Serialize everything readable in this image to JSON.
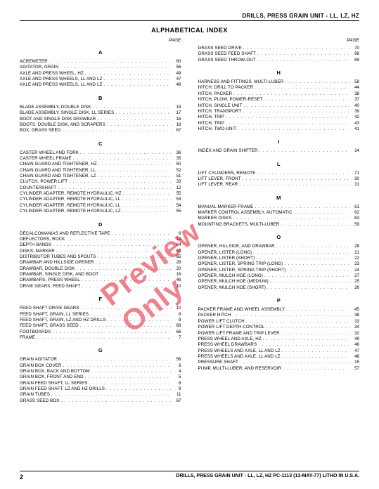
{
  "header": "DRILLS, PRESS GRAIN UNIT - LL, LZ, HZ",
  "indexTitle": "ALPHABETICAL INDEX",
  "pageLabel": "PAGE",
  "watermark": "Preview Only",
  "footer": {
    "pageNum": "2",
    "text": "DRILLS, PRESS GRAIN UNIT - LL, LZ, HZ   PC-1113 (13-MAY-77)   LITHO IN U.S.A."
  },
  "left": [
    {
      "letter": "A"
    },
    {
      "label": "ACREMETER",
      "page": "60"
    },
    {
      "label": "AGITATOR, GRAIN",
      "page": "56"
    },
    {
      "label": "AXLE AND PRESS WHEEL, HZ",
      "page": "49"
    },
    {
      "label": "AXLE AND PRESS WHEELS, LL AND LZ",
      "page": "47"
    },
    {
      "label": "AXLE AND PRESS WHEELS, LL AND LZ",
      "page": "48"
    },
    {
      "letter": "B"
    },
    {
      "label": "BLADE ASSEMBLY, DOUBLE DISK",
      "page": "19"
    },
    {
      "label": "BLADE ASSEMBLY, SINGLE DISK, LL SERIES",
      "page": "17"
    },
    {
      "label": "BOOT AND SINGLE DISK DRAWBAR",
      "page": "16"
    },
    {
      "label": "BOOTS, DOUBLE DISK, AND SCRAPERS",
      "page": "18"
    },
    {
      "label": "BOX, GRASS SEED",
      "page": "67"
    },
    {
      "letter": "C"
    },
    {
      "label": "CASTER WHEEL AND FORK",
      "page": "36"
    },
    {
      "label": "CASTER WHEEL FRAME",
      "page": "35"
    },
    {
      "label": "CHAIN GUARD AND TIGHTENER, HZ",
      "page": "50"
    },
    {
      "label": "CHAIN GUARD AND TIGHTENER, LL",
      "page": "52"
    },
    {
      "label": "CHAIN GUARD AND TIGHTENER, LZ",
      "page": "51"
    },
    {
      "label": "CLUTCH, POWER LIFT",
      "page": "33"
    },
    {
      "label": "COUNTERSHAFT",
      "page": "12"
    },
    {
      "label": "CYLINDER ADAPTER, REMOTE HYDRAULIC, HZ",
      "page": "55"
    },
    {
      "label": "CYLINDER ADAPTER, REMOTE HYDRAULIC, LL",
      "page": "53"
    },
    {
      "label": "CYLINDER ADAPTER, REMOTE HYDRAULIC, LL",
      "page": "54"
    },
    {
      "label": "CYLINDER ADAPTER, REMOTE HYDRAULIC, LZ",
      "page": "55"
    },
    {
      "letter": "D"
    },
    {
      "label": "DECALCOMANIAS AND REFLECTIVE TAPE",
      "page": "6"
    },
    {
      "label": "DEFLECTORS, ROCK",
      "page": "14"
    },
    {
      "label": "DEPTH BANDS",
      "page": "64"
    },
    {
      "label": "DISKS, MARKER",
      "page": "63"
    },
    {
      "label": "DISTRIBUTOR TUBES AND SPOUTS",
      "page": "65"
    },
    {
      "label": "DRAWBAR AND HILLSIDE OPENER",
      "page": "28"
    },
    {
      "label": "DRAWBAR, DOUBLE DISK",
      "page": "20"
    },
    {
      "label": "DRAWBAR, SINGLE DISK, AND BOOT",
      "page": "16"
    },
    {
      "label": "DRAWBARS, PRESS WHEEL",
      "page": "46"
    },
    {
      "label": "DRIVE GEARS, FEED SHAFT",
      "page": "10"
    },
    {
      "letter": "F"
    },
    {
      "label": "FEED SHAFT DRIVE GEARS",
      "page": "10"
    },
    {
      "label": "FEED SHAFT, GRAIN, LL SERIES",
      "page": "8"
    },
    {
      "label": "FEED SHAFT, GRAIN, LZ AND HZ DRILLS",
      "page": "9"
    },
    {
      "label": "FEED SHAFT, GRASS SEED",
      "page": "68"
    },
    {
      "label": "FOOTBOARDS",
      "page": "66"
    },
    {
      "label": "FRAME",
      "page": "7"
    },
    {
      "letter": "G"
    },
    {
      "label": "GRAIN AGITATOR",
      "page": "56"
    },
    {
      "label": "GRAIN BOX COVER",
      "page": "6"
    },
    {
      "label": "GRAIN BOX, BACK AND BOTTOM",
      "page": "4"
    },
    {
      "label": "GRAIN BOX, FRONT AND END",
      "page": "5"
    },
    {
      "label": "GRAIN FEED SHAFT, LL SERIES",
      "page": "8"
    },
    {
      "label": "GRAIN FEED SHAFT, LZ AND HZ DRILLS",
      "page": "9"
    },
    {
      "label": "GRAIN TUBES",
      "page": "11"
    },
    {
      "label": "GRASS SEED BOX",
      "page": "67"
    }
  ],
  "right": [
    {
      "label": "GRASS SEED DRIVE",
      "page": "70"
    },
    {
      "label": "GRASS SEED FEED SHAFT",
      "page": "68"
    },
    {
      "label": "GRASS SEED THROW-OUT",
      "page": "69"
    },
    {
      "letter": "H"
    },
    {
      "label": "HARNESS AND FITTINGS, MULTI-LUBER",
      "page": "58"
    },
    {
      "label": "HITCH, DRILL TO PACKER",
      "page": "44"
    },
    {
      "label": "HITCH, PACKER",
      "page": "38"
    },
    {
      "label": "HITCH, PLOW, POWER-RESET",
      "page": "37"
    },
    {
      "label": "HITCH, SINGLE UNIT",
      "page": "40"
    },
    {
      "label": "HITCH, TRANSPORT",
      "page": "39"
    },
    {
      "label": "HITCH, TRIP",
      "page": "42"
    },
    {
      "label": "HITCH, TRIP",
      "page": "43"
    },
    {
      "label": "HITCH, TWO-UNIT",
      "page": "41"
    },
    {
      "letter": "I"
    },
    {
      "label": "INDEX AND GRAIN SHIFTER",
      "page": "14"
    },
    {
      "letter": "L"
    },
    {
      "label": "LIFT CYLINDERS, REMOTE",
      "page": "71"
    },
    {
      "label": "LIFT LEVER, FRONT",
      "page": "30"
    },
    {
      "label": "LIFT LEVER, REAR",
      "page": "31"
    },
    {
      "letter": "M"
    },
    {
      "label": "MANUAL MARKER FRAME",
      "page": "61"
    },
    {
      "label": "MARKER CONTROL ASSEMBLY, AUTOMATIC",
      "page": "62"
    },
    {
      "label": "MARKER DISKS",
      "page": "63"
    },
    {
      "label": "MOUNTING BRACKETS, MULTI-LUBER",
      "page": "59"
    },
    {
      "letter": "O"
    },
    {
      "label": "OPENER, HILLSIDE, AND DRAWBAR",
      "page": "28"
    },
    {
      "label": "OPENER, LISTER (LONG)",
      "page": "21"
    },
    {
      "label": "OPENER, LISTER (SHORT)",
      "page": "22"
    },
    {
      "label": "OPENER, LISTER, SPRING TRIP (LONG)",
      "page": "23"
    },
    {
      "label": "OPENER, LISTER, SPRING TRIP (SHORT)",
      "page": "24"
    },
    {
      "label": "OPENER, MULCH HOE (LONG)",
      "page": "27"
    },
    {
      "label": "OPENER, MULCH HOE (MEDIUM)",
      "page": "25"
    },
    {
      "label": "OPENER, MULCH HOE (SHORT)",
      "page": "26"
    },
    {
      "letter": "P"
    },
    {
      "label": "PACKER FRAME AND WHEEL ASSEMBLY",
      "page": "45"
    },
    {
      "label": "PACKER HITCH",
      "page": "38"
    },
    {
      "label": "POWER LIFT CLUTCH",
      "page": "33"
    },
    {
      "label": "POWER LIFT DEPTH CONTROL",
      "page": "34"
    },
    {
      "label": "POWER LIFT FRAME AND TRIP LEVER",
      "page": "32"
    },
    {
      "label": "PRESS WHEEL AND AXLE, HZ",
      "page": "49"
    },
    {
      "label": "PRESS WHEEL DRAWBARS",
      "page": "46"
    },
    {
      "label": "PRESS WHEELS AND AXLE, LL AND LZ",
      "page": "47"
    },
    {
      "label": "PRESS WHEELS AND AXLE, LL AND LZ",
      "page": "48"
    },
    {
      "label": "PRESSURE SHAFT",
      "page": "15"
    },
    {
      "label": "PUMP, MULTI-LUBER, AND RESERVOIR",
      "page": "57"
    }
  ]
}
